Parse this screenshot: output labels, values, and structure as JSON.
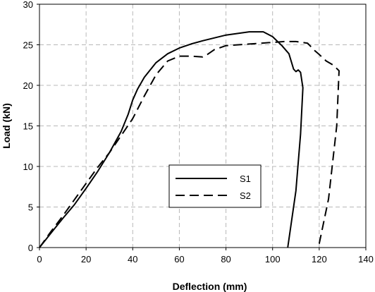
{
  "chart_data": {
    "type": "line",
    "title": "",
    "xlabel": "Deflection (mm)",
    "ylabel": "Load (kN)",
    "xlim": [
      0,
      140
    ],
    "ylim": [
      0,
      30
    ],
    "xticks": [
      0,
      20,
      40,
      60,
      80,
      100,
      120,
      140
    ],
    "yticks": [
      0,
      5,
      10,
      15,
      20,
      25,
      30
    ],
    "grid": true,
    "legend_position": "center",
    "series": [
      {
        "name": "S1",
        "line_style": "solid",
        "color": "#000000",
        "x": [
          0,
          5,
          10,
          15,
          20,
          25,
          30,
          35,
          38,
          40,
          42,
          45,
          50,
          55,
          60,
          65,
          70,
          80,
          90,
          96,
          100,
          104,
          107,
          109,
          110,
          111,
          112,
          113,
          112,
          110,
          106.5
        ],
        "y": [
          0,
          1.8,
          3.6,
          5.3,
          7.3,
          9.4,
          11.7,
          14.3,
          16.4,
          18.2,
          19.5,
          21.0,
          22.8,
          23.9,
          24.6,
          25.1,
          25.5,
          26.2,
          26.6,
          26.6,
          26.0,
          24.9,
          23.9,
          22.0,
          21.7,
          21.9,
          21.6,
          19.7,
          14.0,
          7.0,
          0
        ]
      },
      {
        "name": "S2",
        "line_style": "dashed",
        "color": "#000000",
        "x": [
          0,
          5,
          10,
          15,
          20,
          25,
          30,
          35,
          40,
          45,
          50,
          55,
          60,
          65,
          70,
          72,
          75,
          80,
          90,
          100,
          105,
          110,
          115,
          118,
          120,
          123,
          126,
          128.5,
          127.5,
          124,
          120,
          119
        ],
        "y": [
          0,
          2.0,
          3.9,
          5.9,
          7.9,
          9.9,
          11.7,
          13.8,
          15.9,
          18.7,
          21.3,
          23.0,
          23.6,
          23.6,
          23.5,
          23.8,
          24.4,
          24.9,
          25.1,
          25.3,
          25.4,
          25.4,
          25.2,
          24.3,
          23.8,
          23.0,
          22.5,
          21.8,
          15.0,
          6.0,
          0.5,
          0
        ]
      }
    ]
  }
}
